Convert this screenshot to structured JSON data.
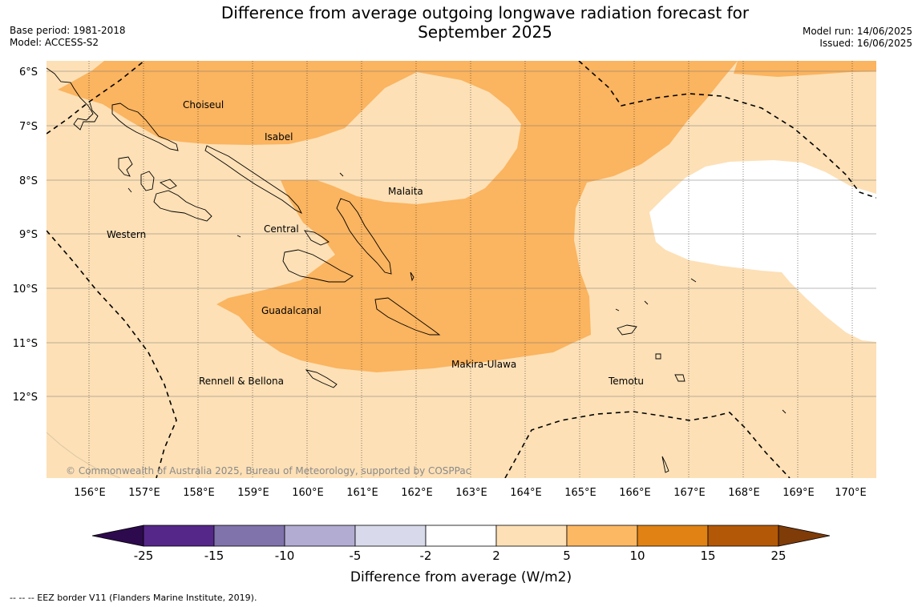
{
  "header": {
    "title_line1": "Difference from average outgoing longwave radiation forecast for",
    "title_line2": "September 2025",
    "base_period": "Base period: 1981-2018",
    "model": "Model: ACCESS-S2",
    "model_run": "Model run: 14/06/2025",
    "issued": "Issued: 16/06/2025"
  },
  "map": {
    "lat_ticks": [
      "6°S",
      "7°S",
      "8°S",
      "9°S",
      "10°S",
      "11°S",
      "12°S"
    ],
    "lon_ticks": [
      "156°E",
      "157°E",
      "158°E",
      "159°E",
      "160°E",
      "161°E",
      "162°E",
      "163°E",
      "164°E",
      "165°E",
      "166°E",
      "167°E",
      "168°E",
      "169°E",
      "170°E"
    ],
    "places": [
      "Choiseul",
      "Isabel",
      "Malaita",
      "Western",
      "Central",
      "Guadalcanal",
      "Makira-Ulawa",
      "Rennell & Bellona",
      "Temotu"
    ],
    "copyright": "© Commonwealth of Australia 2025, Bureau of Meteorology, supported by COSPPac",
    "colors": {
      "band_2_5": "#fde0b6",
      "band_5_10": "#fbb45f",
      "band_-2_2": "#ffffff"
    }
  },
  "colorbar": {
    "labels": [
      "-25",
      "-15",
      "-10",
      "-5",
      "-2",
      "2",
      "5",
      "10",
      "15",
      "25"
    ],
    "colors": [
      "#2d0a4e",
      "#542788",
      "#8073ac",
      "#b2abd2",
      "#d8daeb",
      "#ffffff",
      "#fee0b6",
      "#fdb863",
      "#e08214",
      "#b35806",
      "#7f3b08"
    ],
    "title": "Difference from average (W/m2)"
  },
  "footer": {
    "eez_note": "--  --  -- EEZ border V11 (Flanders Marine Institute, 2019)."
  }
}
